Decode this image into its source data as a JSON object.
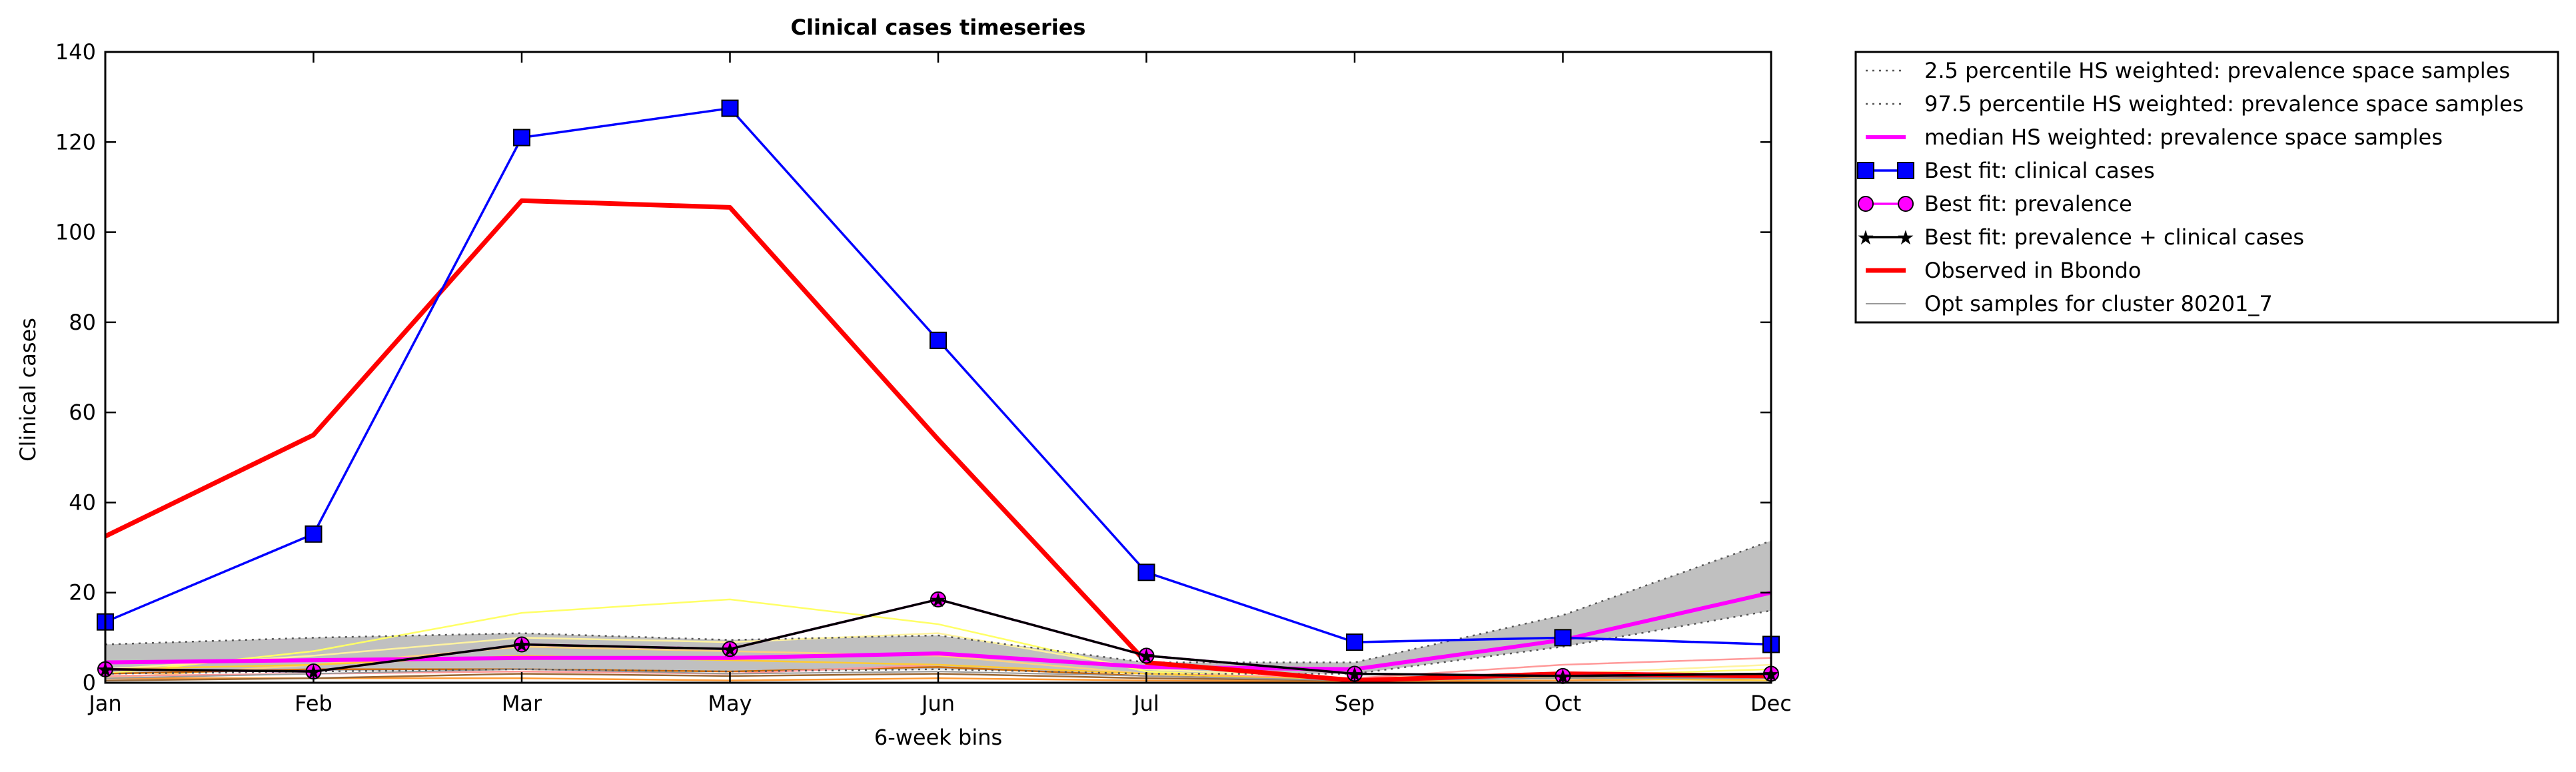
{
  "chart_data": {
    "type": "line",
    "title": "Clinical cases timeseries",
    "xlabel": "6-week bins",
    "ylabel": "Clinical cases",
    "categories": [
      "Jan",
      "Feb",
      "Mar",
      "May",
      "Jun",
      "Jul",
      "Sep",
      "Oct",
      "Dec"
    ],
    "ylim": [
      0,
      140
    ],
    "yticks": [
      0,
      20,
      40,
      60,
      80,
      100,
      120,
      140
    ],
    "grid": false,
    "legend_position": "outside-right",
    "series": [
      {
        "name": "2.5 percentile HS weighted: prevalence space samples",
        "values": [
          2,
          2.5,
          3,
          2.5,
          3,
          2,
          2,
          8,
          16
        ],
        "color": "#555555"
      },
      {
        "name": "97.5 percentile HS weighted: prevalence space samples",
        "values": [
          8.5,
          10,
          11,
          9.5,
          10.5,
          4.5,
          4.5,
          15,
          31.5
        ],
        "color": "#555555"
      },
      {
        "name": "median HS weighted: prevalence space samples",
        "values": [
          4.5,
          5,
          5.5,
          5.5,
          6.5,
          3.5,
          3,
          9.5,
          20
        ],
        "color": "#ff00ff"
      },
      {
        "name": "Best fit: clinical cases",
        "values": [
          13.5,
          33,
          121,
          127.5,
          76,
          24.5,
          9,
          10,
          8.5
        ],
        "color": "#0000ff"
      },
      {
        "name": "Best fit: prevalence",
        "values": [
          3,
          2.5,
          8.5,
          7.5,
          18.5,
          6,
          2,
          1.5,
          2
        ],
        "color": "#ff00ff"
      },
      {
        "name": "Best fit: prevalence + clinical cases",
        "values": [
          3,
          2.5,
          8.5,
          7.5,
          18.5,
          6,
          2,
          1.5,
          2
        ],
        "color": "#000000"
      },
      {
        "name": "Observed in Bbondo",
        "values": [
          32.5,
          55,
          107,
          105.5,
          54,
          4.5,
          0.5,
          2,
          1.5
        ],
        "color": "#ff0000"
      },
      {
        "name": "Opt samples for cluster 80201_7",
        "values": [
          1,
          2,
          3,
          2,
          2.5,
          1.5,
          0.5,
          1,
          1
        ],
        "color": "#999999"
      }
    ],
    "sample_lines": [
      {
        "values": [
          2,
          7,
          15.5,
          18.5,
          13,
          2.5,
          0.5,
          1.5,
          3
        ],
        "color": "#ffff66"
      },
      {
        "values": [
          3,
          6,
          10,
          9,
          11,
          3,
          1,
          2,
          4
        ],
        "color": "#fff3a0"
      },
      {
        "values": [
          1,
          4,
          8,
          7,
          6,
          2,
          1,
          2,
          2
        ],
        "color": "#ffd280"
      },
      {
        "values": [
          1,
          1,
          1,
          0.5,
          1,
          0.5,
          0.3,
          0.5,
          1
        ],
        "color": "#ff9933"
      },
      {
        "values": [
          2,
          3,
          3,
          2.5,
          3.5,
          1.5,
          0.5,
          1.5,
          2
        ],
        "color": "#cc6600"
      },
      {
        "values": [
          1.5,
          2,
          2.5,
          2,
          4,
          2,
          1,
          4,
          5.5
        ],
        "color": "#ff9999"
      },
      {
        "values": [
          0.5,
          1,
          2,
          1.5,
          2,
          1,
          0.5,
          1,
          1.5
        ],
        "color": "#996633"
      },
      {
        "values": [
          3,
          4,
          6,
          5,
          4,
          2,
          0.5,
          1,
          0.5
        ],
        "color": "#ffcc33"
      }
    ],
    "band": {
      "lower_series": 0,
      "upper_series": 1,
      "color": "#c0c0c0"
    }
  }
}
